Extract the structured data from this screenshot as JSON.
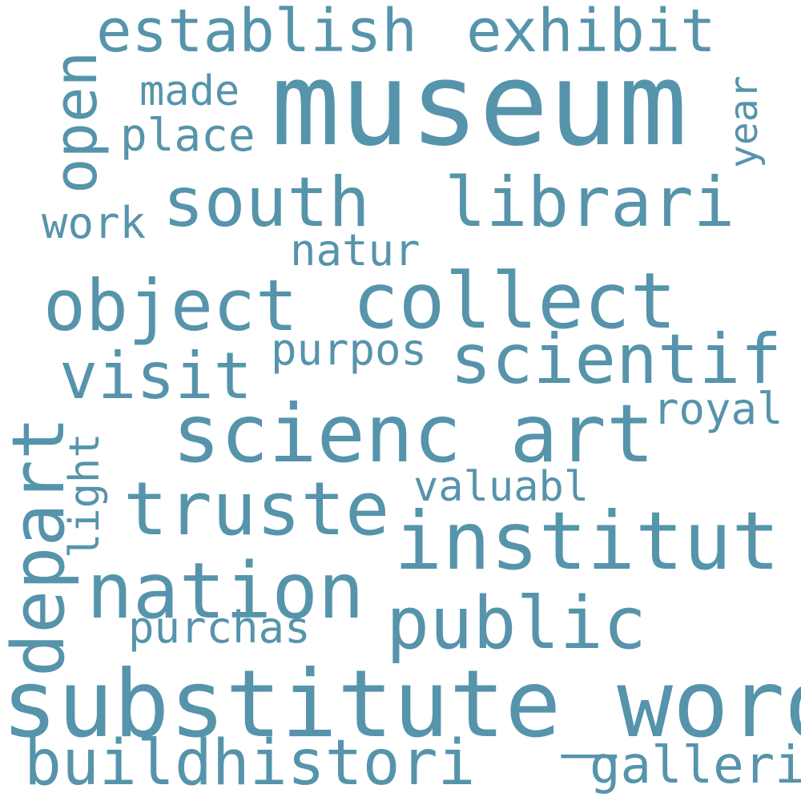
{
  "word_color": "#5694ab",
  "background": "#ffffff",
  "words": {
    "museum": "museum",
    "substitute_word": "substitute_word",
    "sciencart": "scienc art",
    "collect": "collect",
    "object": "object",
    "south": "south",
    "librari": "librari",
    "institut": "institut",
    "truste": "truste",
    "nation": "nation",
    "public": "public",
    "scientif": "scientif",
    "depart": "depart",
    "establish": "establish",
    "exhibit": "exhibit",
    "open": "open",
    "visit": "visit",
    "buildhistori": "buildhistori",
    "galleri": "galleri",
    "royal": "royal",
    "valuabl": "valuabl",
    "purchas": "purchas",
    "purpos": "purpos",
    "natur": "natur",
    "work": "work",
    "place": "place",
    "made": "made",
    "year": "year",
    "light": "light"
  }
}
